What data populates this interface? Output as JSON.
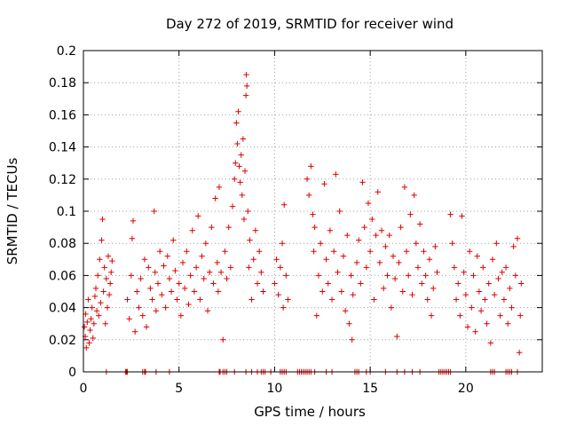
{
  "chart_data": {
    "type": "scatter",
    "title": "Day 272 of 2019, SRMTID for receiver wind",
    "xlabel": "GPS time / hours",
    "ylabel": "SRMTID / TECUs",
    "xlim": [
      0,
      24
    ],
    "ylim": [
      0,
      0.2
    ],
    "x_ticks": [
      0,
      5,
      10,
      15,
      20
    ],
    "x_tick_labels": [
      "0",
      "5",
      "10",
      "15",
      "20"
    ],
    "y_ticks": [
      0,
      0.02,
      0.04,
      0.06,
      0.08,
      0.1,
      0.12,
      0.14,
      0.16,
      0.18,
      0.2
    ],
    "y_tick_labels": [
      "0",
      "0.02",
      "0.04",
      "0.06",
      "0.08",
      "0.1",
      "0.12",
      "0.14",
      "0.16",
      "0.18",
      "0.2"
    ],
    "grid": true,
    "marker": "+",
    "series": [
      {
        "name": "SRMTID",
        "color": "#e00000",
        "points": [
          [
            0.05,
            0.028
          ],
          [
            0.1,
            0.022
          ],
          [
            0.12,
            0.036
          ],
          [
            0.15,
            0.015
          ],
          [
            0.2,
            0.031
          ],
          [
            0.25,
            0.045
          ],
          [
            0.3,
            0.018
          ],
          [
            0.35,
            0.026
          ],
          [
            0.4,
            0.033
          ],
          [
            0.45,
            0.04
          ],
          [
            0.5,
            0.021
          ],
          [
            0.55,
            0.03
          ],
          [
            0.6,
            0.047
          ],
          [
            0.65,
            0.052
          ],
          [
            0.7,
            0.038
          ],
          [
            0.75,
            0.06
          ],
          [
            0.8,
            0.035
          ],
          [
            0.85,
            0.07
          ],
          [
            0.9,
            0.043
          ],
          [
            0.95,
            0.082
          ],
          [
            1.0,
            0.095
          ],
          [
            1.05,
            0.05
          ],
          [
            1.1,
            0.065
          ],
          [
            1.15,
            0.03
          ],
          [
            1.2,
            0.058
          ],
          [
            1.25,
            0.04
          ],
          [
            1.3,
            0.072
          ],
          [
            1.35,
            0.048
          ],
          [
            1.4,
            0.055
          ],
          [
            1.45,
            0.062
          ],
          [
            1.5,
            0.069
          ],
          [
            2.3,
            0.045
          ],
          [
            2.4,
            0.033
          ],
          [
            2.5,
            0.06
          ],
          [
            2.55,
            0.083
          ],
          [
            2.6,
            0.094
          ],
          [
            2.7,
            0.025
          ],
          [
            2.8,
            0.05
          ],
          [
            2.9,
            0.04
          ],
          [
            3.0,
            0.058
          ],
          [
            3.1,
            0.035
          ],
          [
            3.2,
            0.07
          ],
          [
            3.3,
            0.028
          ],
          [
            3.4,
            0.065
          ],
          [
            3.5,
            0.052
          ],
          [
            3.6,
            0.045
          ],
          [
            3.7,
            0.1
          ],
          [
            3.75,
            0.062
          ],
          [
            3.8,
            0.038
          ],
          [
            3.9,
            0.055
          ],
          [
            4.0,
            0.075
          ],
          [
            4.1,
            0.048
          ],
          [
            4.2,
            0.066
          ],
          [
            4.3,
            0.04
          ],
          [
            4.4,
            0.072
          ],
          [
            4.5,
            0.058
          ],
          [
            4.6,
            0.05
          ],
          [
            4.7,
            0.082
          ],
          [
            4.8,
            0.063
          ],
          [
            4.9,
            0.045
          ],
          [
            5.0,
            0.055
          ],
          [
            5.1,
            0.035
          ],
          [
            5.2,
            0.068
          ],
          [
            5.3,
            0.052
          ],
          [
            5.4,
            0.075
          ],
          [
            5.5,
            0.042
          ],
          [
            5.6,
            0.06
          ],
          [
            5.7,
            0.088
          ],
          [
            5.8,
            0.05
          ],
          [
            5.9,
            0.065
          ],
          [
            6.0,
            0.097
          ],
          [
            6.1,
            0.045
          ],
          [
            6.2,
            0.072
          ],
          [
            6.3,
            0.058
          ],
          [
            6.4,
            0.08
          ],
          [
            6.5,
            0.038
          ],
          [
            6.6,
            0.062
          ],
          [
            6.7,
            0.09
          ],
          [
            6.8,
            0.055
          ],
          [
            6.9,
            0.108
          ],
          [
            7.0,
            0.068
          ],
          [
            7.05,
            0.05
          ],
          [
            7.1,
            0.115
          ],
          [
            7.2,
            0.062
          ],
          [
            7.3,
            0.02
          ],
          [
            7.4,
            0.075
          ],
          [
            7.5,
            0.058
          ],
          [
            7.6,
            0.09
          ],
          [
            7.7,
            0.065
          ],
          [
            7.8,
            0.103
          ],
          [
            7.9,
            0.12
          ],
          [
            7.95,
            0.13
          ],
          [
            8.0,
            0.155
          ],
          [
            8.05,
            0.142
          ],
          [
            8.1,
            0.162
          ],
          [
            8.15,
            0.128
          ],
          [
            8.2,
            0.118
          ],
          [
            8.25,
            0.135
          ],
          [
            8.3,
            0.11
          ],
          [
            8.35,
            0.145
          ],
          [
            8.4,
            0.095
          ],
          [
            8.45,
            0.125
          ],
          [
            8.5,
            0.172
          ],
          [
            8.52,
            0.185
          ],
          [
            8.55,
            0.178
          ],
          [
            8.6,
            0.1
          ],
          [
            8.65,
            0.065
          ],
          [
            8.7,
            0.082
          ],
          [
            8.8,
            0.045
          ],
          [
            8.9,
            0.07
          ],
          [
            9.0,
            0.088
          ],
          [
            9.1,
            0.055
          ],
          [
            9.2,
            0.075
          ],
          [
            9.3,
            0.062
          ],
          [
            9.4,
            0.05
          ],
          [
            10.0,
            0.055
          ],
          [
            10.1,
            0.07
          ],
          [
            10.2,
            0.048
          ],
          [
            10.3,
            0.065
          ],
          [
            10.4,
            0.08
          ],
          [
            10.45,
            0.04
          ],
          [
            10.5,
            0.104
          ],
          [
            10.6,
            0.06
          ],
          [
            10.7,
            0.045
          ],
          [
            11.7,
            0.12
          ],
          [
            11.8,
            0.11
          ],
          [
            11.9,
            0.128
          ],
          [
            12.0,
            0.098
          ],
          [
            12.05,
            0.075
          ],
          [
            12.1,
            0.09
          ],
          [
            12.2,
            0.035
          ],
          [
            12.3,
            0.06
          ],
          [
            12.4,
            0.08
          ],
          [
            12.5,
            0.05
          ],
          [
            12.6,
            0.117
          ],
          [
            12.7,
            0.07
          ],
          [
            12.8,
            0.055
          ],
          [
            12.9,
            0.088
          ],
          [
            13.0,
            0.045
          ],
          [
            13.1,
            0.075
          ],
          [
            13.2,
            0.123
          ],
          [
            13.3,
            0.062
          ],
          [
            13.4,
            0.1
          ],
          [
            13.5,
            0.05
          ],
          [
            13.6,
            0.072
          ],
          [
            13.7,
            0.038
          ],
          [
            13.8,
            0.085
          ],
          [
            13.9,
            0.03
          ],
          [
            14.0,
            0.06
          ],
          [
            14.05,
            0.02
          ],
          [
            14.1,
            0.048
          ],
          [
            14.3,
            0.068
          ],
          [
            14.4,
            0.082
          ],
          [
            14.5,
            0.055
          ],
          [
            14.6,
            0.118
          ],
          [
            14.7,
            0.09
          ],
          [
            14.8,
            0.065
          ],
          [
            14.9,
            0.105
          ],
          [
            15.0,
            0.075
          ],
          [
            15.1,
            0.095
          ],
          [
            15.2,
            0.045
          ],
          [
            15.3,
            0.085
          ],
          [
            15.4,
            0.112
          ],
          [
            15.5,
            0.068
          ],
          [
            15.6,
            0.088
          ],
          [
            15.7,
            0.052
          ],
          [
            15.8,
            0.078
          ],
          [
            15.9,
            0.06
          ],
          [
            16.0,
            0.085
          ],
          [
            16.1,
            0.04
          ],
          [
            16.2,
            0.072
          ],
          [
            16.3,
            0.058
          ],
          [
            16.4,
            0.022
          ],
          [
            16.5,
            0.068
          ],
          [
            16.6,
            0.09
          ],
          [
            16.7,
            0.05
          ],
          [
            16.8,
            0.115
          ],
          [
            16.9,
            0.075
          ],
          [
            17.0,
            0.06
          ],
          [
            17.1,
            0.098
          ],
          [
            17.2,
            0.048
          ],
          [
            17.3,
            0.11
          ],
          [
            17.4,
            0.08
          ],
          [
            17.5,
            0.065
          ],
          [
            17.6,
            0.092
          ],
          [
            17.7,
            0.055
          ],
          [
            17.8,
            0.075
          ],
          [
            17.9,
            0.06
          ],
          [
            18.0,
            0.045
          ],
          [
            18.1,
            0.07
          ],
          [
            18.2,
            0.035
          ],
          [
            18.3,
            0.052
          ],
          [
            18.4,
            0.078
          ],
          [
            18.5,
            0.062
          ],
          [
            19.2,
            0.098
          ],
          [
            19.3,
            0.08
          ],
          [
            19.4,
            0.065
          ],
          [
            19.5,
            0.045
          ],
          [
            19.6,
            0.055
          ],
          [
            19.7,
            0.035
          ],
          [
            19.8,
            0.097
          ],
          [
            19.9,
            0.062
          ],
          [
            20.0,
            0.048
          ],
          [
            20.1,
            0.028
          ],
          [
            20.2,
            0.075
          ],
          [
            20.3,
            0.04
          ],
          [
            20.4,
            0.06
          ],
          [
            20.5,
            0.025
          ],
          [
            20.6,
            0.072
          ],
          [
            20.7,
            0.05
          ],
          [
            20.8,
            0.038
          ],
          [
            20.9,
            0.065
          ],
          [
            21.0,
            0.045
          ],
          [
            21.1,
            0.03
          ],
          [
            21.2,
            0.055
          ],
          [
            21.3,
            0.018
          ],
          [
            21.4,
            0.07
          ],
          [
            21.5,
            0.048
          ],
          [
            21.6,
            0.08
          ],
          [
            21.7,
            0.058
          ],
          [
            21.8,
            0.035
          ],
          [
            21.9,
            0.062
          ],
          [
            22.0,
            0.045
          ],
          [
            22.1,
            0.065
          ],
          [
            22.2,
            0.03
          ],
          [
            22.3,
            0.052
          ],
          [
            22.4,
            0.04
          ],
          [
            22.5,
            0.078
          ],
          [
            22.6,
            0.06
          ],
          [
            22.7,
            0.083
          ],
          [
            22.8,
            0.012
          ],
          [
            22.85,
            0.035
          ],
          [
            22.9,
            0.055
          ]
        ]
      }
    ],
    "zero_points_x": [
      1.2,
      2.2,
      2.25,
      2.3,
      3.1,
      3.2,
      3.25,
      3.8,
      4.5,
      7.1,
      7.15,
      7.3,
      7.4,
      7.5,
      7.9,
      8.5,
      8.8,
      9.1,
      9.3,
      9.4,
      9.5,
      9.8,
      10.3,
      10.4,
      10.5,
      10.6,
      11.2,
      11.3,
      11.4,
      11.5,
      11.6,
      11.7,
      11.8,
      11.9,
      12.1,
      12.7,
      13.0,
      14.2,
      14.3,
      14.4,
      14.8,
      15.0,
      15.8,
      16.4,
      16.8,
      17.2,
      17.6,
      18.6,
      18.7,
      18.8,
      18.9,
      19.0,
      19.1,
      19.2,
      21.3,
      21.4,
      21.5,
      22.1,
      22.2,
      22.3,
      22.4,
      22.7
    ]
  }
}
